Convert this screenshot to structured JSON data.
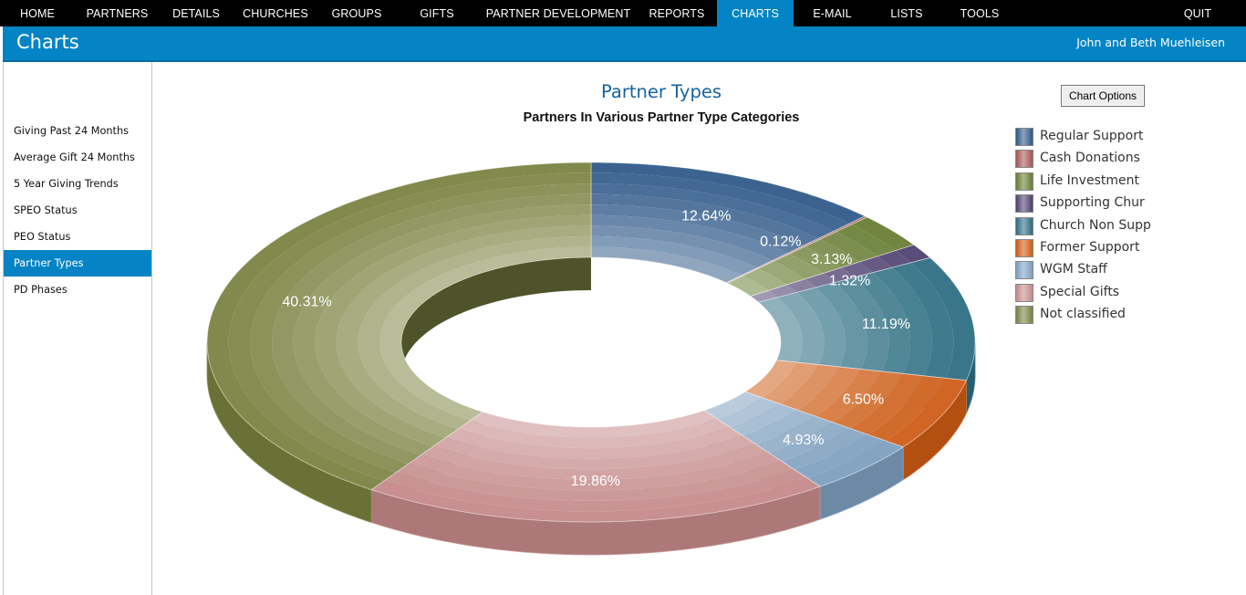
{
  "nav": {
    "items": [
      "HOME",
      "PARTNERS",
      "DETAILS",
      "CHURCHES",
      "GROUPS",
      "GIFTS",
      "PARTNER DEVELOPMENT",
      "REPORTS",
      "CHARTS",
      "E-MAIL",
      "LISTS",
      "TOOLS"
    ],
    "active": "CHARTS",
    "quit": "QUIT"
  },
  "header": {
    "title": "Charts",
    "user": "John and Beth Muehleisen"
  },
  "sidebar": {
    "items": [
      "Giving Past 24 Months",
      "Average Gift 24 Months",
      "5 Year Giving Trends",
      "SPEO Status",
      "PEO Status",
      "Partner Types",
      "PD Phases"
    ],
    "active": "Partner Types"
  },
  "chart_options_label": "Chart Options",
  "chart_data": {
    "type": "pie",
    "style": "3d-doughnut",
    "title": "Partner Types",
    "subtitle": "Partners In Various Partner Type Categories",
    "legend_position": "right",
    "categories": [
      "Regular Support",
      "Cash Donations",
      "Life Investment",
      "Supporting Chur",
      "Church Non Supp",
      "Former Support",
      "WGM Staff",
      "Special Gifts",
      "Not classified"
    ],
    "values": [
      12.64,
      0.12,
      3.13,
      1.32,
      11.19,
      6.5,
      4.93,
      19.86,
      40.31
    ],
    "data_labels": [
      "12.64%",
      "0.12%",
      "3.13%",
      "1.32%",
      "11.19%",
      "6.50%",
      "4.93%",
      "19.86%",
      "40.31%"
    ],
    "colors": [
      "#2d5787",
      "#a55454",
      "#667c32",
      "#4d3f6e",
      "#2a6c80",
      "#cc5a14",
      "#7b9dbd",
      "#c48888",
      "#79803f"
    ]
  }
}
